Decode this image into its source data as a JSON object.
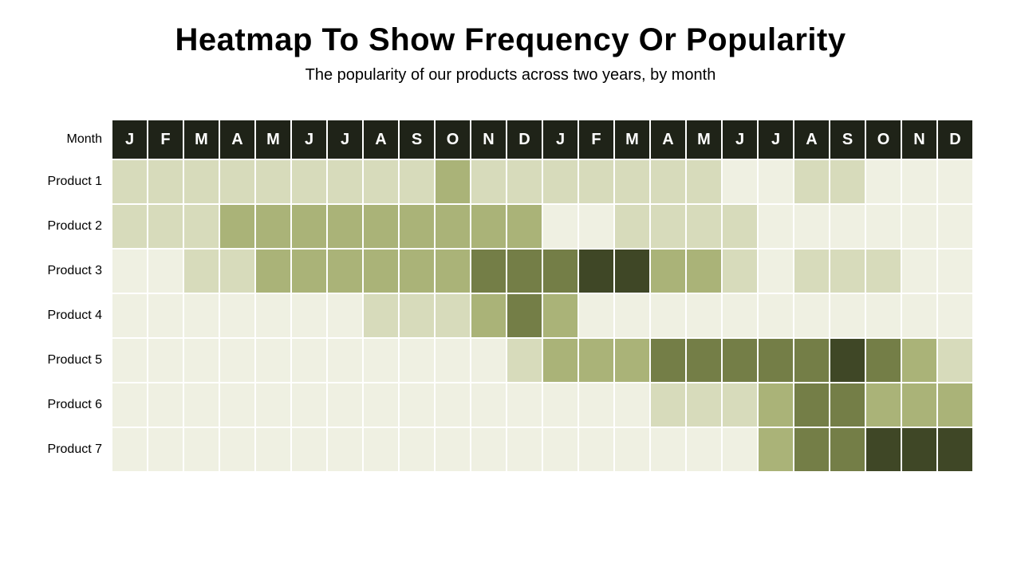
{
  "title": "Heatmap To Show Frequency Or Popularity",
  "subtitle": "The popularity of our products across two years, by month",
  "row_header_label": "Month",
  "columns": [
    "J",
    "F",
    "M",
    "A",
    "M",
    "J",
    "J",
    "A",
    "S",
    "O",
    "N",
    "D",
    "J",
    "F",
    "M",
    "A",
    "M",
    "J",
    "J",
    "A",
    "S",
    "O",
    "N",
    "D"
  ],
  "row_labels": [
    "Product 1",
    "Product 2",
    "Product 3",
    "Product 4",
    "Product 5",
    "Product 6",
    "Product 7"
  ],
  "values": [
    [
      2,
      2,
      2,
      2,
      2,
      2,
      2,
      2,
      2,
      4,
      2,
      2,
      2,
      2,
      2,
      2,
      2,
      1,
      1,
      2,
      2,
      1,
      1,
      1
    ],
    [
      2,
      2,
      2,
      4,
      4,
      4,
      4,
      4,
      4,
      4,
      4,
      4,
      1,
      1,
      2,
      2,
      2,
      2,
      1,
      1,
      1,
      1,
      1,
      1
    ],
    [
      1,
      1,
      2,
      2,
      4,
      4,
      4,
      4,
      4,
      4,
      6,
      6,
      6,
      8,
      8,
      4,
      4,
      2,
      1,
      2,
      2,
      2,
      1,
      1
    ],
    [
      1,
      1,
      1,
      1,
      1,
      1,
      1,
      2,
      2,
      2,
      4,
      6,
      4,
      1,
      1,
      1,
      1,
      1,
      1,
      1,
      1,
      1,
      1,
      1
    ],
    [
      1,
      1,
      1,
      1,
      1,
      1,
      1,
      1,
      1,
      1,
      1,
      2,
      4,
      4,
      4,
      6,
      6,
      6,
      6,
      6,
      8,
      6,
      4,
      2
    ],
    [
      1,
      1,
      1,
      1,
      1,
      1,
      1,
      1,
      1,
      1,
      1,
      1,
      1,
      1,
      1,
      2,
      2,
      2,
      4,
      6,
      6,
      4,
      4,
      4
    ],
    [
      1,
      1,
      1,
      1,
      1,
      1,
      1,
      1,
      1,
      1,
      1,
      1,
      1,
      1,
      1,
      1,
      1,
      1,
      4,
      6,
      6,
      8,
      8,
      8
    ]
  ],
  "type": "heatmap",
  "header_bg": "#1f2318",
  "header_text_color": "#ffffff",
  "cell_border_color": "#ffffff",
  "row_label_fontsize": 16,
  "header_fontsize": 20,
  "title_fontsize": 40,
  "subtitle_fontsize": 20,
  "color_scale": {
    "1": "#eff0e2",
    "2": "#d7dbbb",
    "3": "#c6cb9e",
    "4": "#aab378",
    "5": "#8f9a5c",
    "6": "#747e47",
    "7": "#5a6336",
    "8": "#3f4726"
  },
  "background_color": "#ffffff"
}
